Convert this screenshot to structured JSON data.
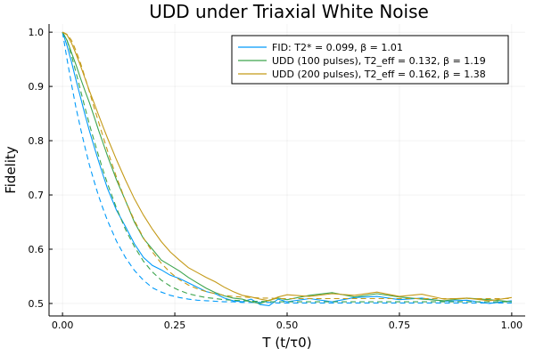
{
  "chart_data": {
    "type": "line",
    "title": "UDD under Triaxial White Noise",
    "xlabel": "T (t/τ0)",
    "ylabel": "Fidelity",
    "xlim": [
      -0.03,
      1.03
    ],
    "ylim": [
      0.477,
      1.015
    ],
    "x_ticks": [
      0.0,
      0.25,
      0.5,
      0.75,
      1.0
    ],
    "x_tick_labels": [
      "0.00",
      "0.25",
      "0.50",
      "0.75",
      "1.00"
    ],
    "y_ticks": [
      0.5,
      0.6,
      0.7,
      0.8,
      0.9,
      1.0
    ],
    "y_tick_labels": [
      "0.5",
      "0.6",
      "0.7",
      "0.8",
      "0.9",
      "1.0"
    ],
    "grid": true,
    "legend_position": "top-right",
    "series": [
      {
        "name": "FID: T2* = 0.099, β = 1.01",
        "color": "#009AFA",
        "x": [
          0.0,
          0.01,
          0.02,
          0.03,
          0.04,
          0.05,
          0.06,
          0.07,
          0.08,
          0.09,
          0.1,
          0.12,
          0.14,
          0.16,
          0.18,
          0.2,
          0.22,
          0.24,
          0.26,
          0.28,
          0.3,
          0.32,
          0.34,
          0.36,
          0.38,
          0.4,
          0.42,
          0.44,
          0.46,
          0.48,
          0.5,
          0.55,
          0.6,
          0.65,
          0.7,
          0.75,
          0.8,
          0.85,
          0.9,
          0.95,
          1.0
        ],
        "measured": [
          1.0,
          0.975,
          0.945,
          0.912,
          0.88,
          0.848,
          0.818,
          0.79,
          0.763,
          0.737,
          0.712,
          0.672,
          0.642,
          0.61,
          0.585,
          0.57,
          0.562,
          0.552,
          0.546,
          0.538,
          0.53,
          0.522,
          0.518,
          0.51,
          0.505,
          0.503,
          0.508,
          0.498,
          0.496,
          0.508,
          0.503,
          0.509,
          0.503,
          0.511,
          0.513,
          0.507,
          0.51,
          0.504,
          0.506,
          0.5,
          0.505
        ],
        "fit": [
          1.0,
          0.95,
          0.904,
          0.861,
          0.823,
          0.788,
          0.755,
          0.726,
          0.699,
          0.675,
          0.653,
          0.615,
          0.585,
          0.561,
          0.543,
          0.529,
          0.521,
          0.515,
          0.511,
          0.508,
          0.506,
          0.505,
          0.504,
          0.503,
          0.503,
          0.502,
          0.502,
          0.502,
          0.502,
          0.501,
          0.501,
          0.501,
          0.501,
          0.501,
          0.501,
          0.501,
          0.501,
          0.501,
          0.501,
          0.501,
          0.501
        ]
      },
      {
        "name": "UDD (100 pulses), T2_eff = 0.132, β = 1.19",
        "color": "#3DA44D",
        "x": [
          0.0,
          0.01,
          0.02,
          0.03,
          0.04,
          0.05,
          0.06,
          0.07,
          0.08,
          0.09,
          0.1,
          0.12,
          0.14,
          0.16,
          0.18,
          0.2,
          0.22,
          0.24,
          0.26,
          0.28,
          0.3,
          0.32,
          0.34,
          0.36,
          0.38,
          0.4,
          0.42,
          0.44,
          0.46,
          0.48,
          0.5,
          0.55,
          0.6,
          0.65,
          0.7,
          0.75,
          0.8,
          0.85,
          0.9,
          0.95,
          1.0
        ],
        "measured": [
          1.0,
          0.985,
          0.962,
          0.94,
          0.915,
          0.892,
          0.87,
          0.845,
          0.82,
          0.796,
          0.772,
          0.728,
          0.69,
          0.65,
          0.62,
          0.6,
          0.58,
          0.57,
          0.56,
          0.548,
          0.538,
          0.528,
          0.52,
          0.514,
          0.51,
          0.508,
          0.503,
          0.5,
          0.506,
          0.51,
          0.507,
          0.515,
          0.52,
          0.512,
          0.518,
          0.512,
          0.508,
          0.505,
          0.51,
          0.507,
          0.503
        ],
        "fit": [
          1.0,
          0.985,
          0.957,
          0.926,
          0.893,
          0.861,
          0.83,
          0.801,
          0.773,
          0.746,
          0.721,
          0.676,
          0.637,
          0.605,
          0.578,
          0.558,
          0.543,
          0.532,
          0.524,
          0.518,
          0.514,
          0.511,
          0.509,
          0.507,
          0.506,
          0.505,
          0.504,
          0.504,
          0.503,
          0.503,
          0.503,
          0.503,
          0.503,
          0.503,
          0.503,
          0.503,
          0.503,
          0.503,
          0.503,
          0.503,
          0.503
        ]
      },
      {
        "name": "UDD (200 pulses), T2_eff = 0.162, β = 1.38",
        "color": "#C49A18",
        "x": [
          0.0,
          0.01,
          0.02,
          0.03,
          0.04,
          0.05,
          0.06,
          0.07,
          0.08,
          0.09,
          0.1,
          0.12,
          0.14,
          0.16,
          0.18,
          0.2,
          0.22,
          0.24,
          0.26,
          0.28,
          0.3,
          0.32,
          0.34,
          0.36,
          0.38,
          0.4,
          0.42,
          0.44,
          0.46,
          0.48,
          0.5,
          0.55,
          0.6,
          0.65,
          0.7,
          0.75,
          0.8,
          0.85,
          0.9,
          0.95,
          1.0
        ],
        "measured": [
          1.0,
          0.995,
          0.98,
          0.96,
          0.938,
          0.915,
          0.892,
          0.87,
          0.848,
          0.826,
          0.805,
          0.765,
          0.728,
          0.693,
          0.663,
          0.637,
          0.614,
          0.595,
          0.58,
          0.566,
          0.557,
          0.548,
          0.54,
          0.53,
          0.522,
          0.515,
          0.512,
          0.508,
          0.505,
          0.512,
          0.516,
          0.513,
          0.518,
          0.515,
          0.521,
          0.513,
          0.517,
          0.508,
          0.51,
          0.505,
          0.511
        ],
        "fit": [
          1.0,
          0.996,
          0.985,
          0.966,
          0.943,
          0.917,
          0.89,
          0.862,
          0.835,
          0.808,
          0.782,
          0.733,
          0.69,
          0.653,
          0.621,
          0.595,
          0.574,
          0.557,
          0.544,
          0.534,
          0.527,
          0.522,
          0.518,
          0.515,
          0.513,
          0.512,
          0.511,
          0.51,
          0.51,
          0.509,
          0.509,
          0.509,
          0.509,
          0.509,
          0.509,
          0.509,
          0.509,
          0.509,
          0.509,
          0.509,
          0.509
        ]
      }
    ]
  }
}
